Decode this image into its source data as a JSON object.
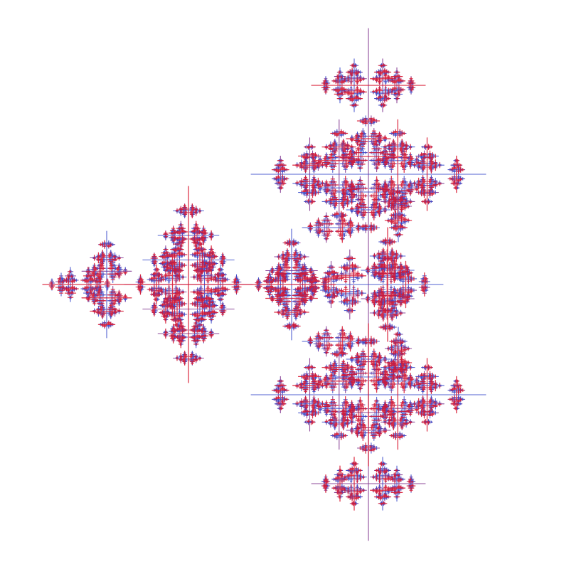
{
  "image": {
    "subject": "fractal",
    "background_color": "#ffffff",
    "colors": {
      "red": "#d8152e",
      "blue": "#3447c9",
      "purple": "#7a2a88"
    }
  }
}
